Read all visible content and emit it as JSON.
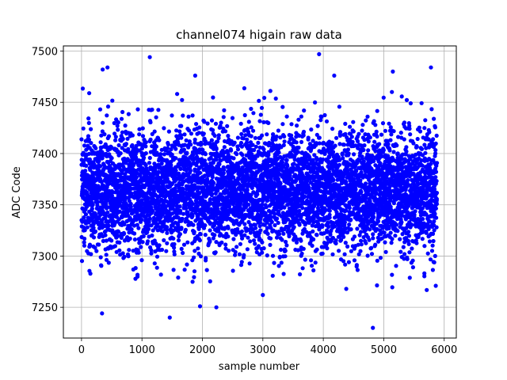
{
  "chart_data": {
    "type": "scatter",
    "title": "channel074 higain raw data",
    "xlabel": "sample number",
    "ylabel": "ADC Code",
    "xlim": [
      -300,
      6200
    ],
    "ylim": [
      7220,
      7505
    ],
    "xticks": [
      0,
      1000,
      2000,
      3000,
      4000,
      5000,
      6000
    ],
    "yticks": [
      7250,
      7300,
      7350,
      7400,
      7450,
      7500
    ],
    "grid": true,
    "series": [
      {
        "color": "#0000ff",
        "marker": "circle",
        "num_points": 6000,
        "x_range": [
          0,
          5880
        ],
        "distribution": {
          "center": 7365,
          "spread": 30
        },
        "notable_points": [
          {
            "x": 1130,
            "y": 7494
          },
          {
            "x": 3930,
            "y": 7497
          },
          {
            "x": 340,
            "y": 7244
          },
          {
            "x": 1460,
            "y": 7240
          },
          {
            "x": 1960,
            "y": 7251
          },
          {
            "x": 2230,
            "y": 7250
          },
          {
            "x": 4820,
            "y": 7230
          },
          {
            "x": 5780,
            "y": 7484
          },
          {
            "x": 5150,
            "y": 7480
          },
          {
            "x": 430,
            "y": 7484
          },
          {
            "x": 350,
            "y": 7482
          },
          {
            "x": 1880,
            "y": 7476
          },
          {
            "x": 4180,
            "y": 7476
          },
          {
            "x": 4380,
            "y": 7268
          },
          {
            "x": 5860,
            "y": 7271
          },
          {
            "x": 3000,
            "y": 7262
          }
        ]
      }
    ]
  }
}
